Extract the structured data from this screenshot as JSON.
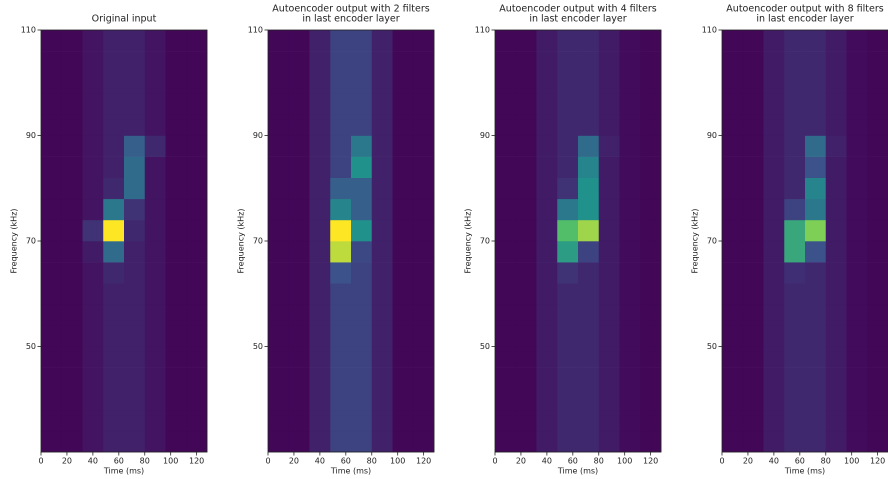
{
  "chart_data": [
    {
      "type": "heatmap",
      "title": [
        "Original input"
      ],
      "xlabel": "Time (ms)",
      "ylabel": "Frequency (kHz)",
      "colormap": "viridis",
      "xlim": [
        0,
        128
      ],
      "ylim": [
        30,
        110
      ],
      "xticks": [
        0,
        20,
        40,
        60,
        80,
        100,
        120
      ],
      "yticks": [
        50,
        70,
        90,
        110
      ],
      "x_edges": [
        0,
        16,
        32,
        48,
        64,
        80,
        96,
        112,
        128
      ],
      "y_edges": [
        30,
        34,
        38,
        42,
        46,
        50,
        54,
        58,
        62,
        66,
        70,
        74,
        78,
        82,
        86,
        90,
        94,
        98,
        102,
        106,
        110
      ],
      "z": [
        [
          0.02,
          0.02,
          0.06,
          0.1,
          0.1,
          0.06,
          0.02,
          0.02
        ],
        [
          0.02,
          0.02,
          0.06,
          0.1,
          0.1,
          0.06,
          0.02,
          0.02
        ],
        [
          0.02,
          0.02,
          0.06,
          0.1,
          0.1,
          0.06,
          0.02,
          0.02
        ],
        [
          0.02,
          0.02,
          0.06,
          0.1,
          0.1,
          0.06,
          0.02,
          0.02
        ],
        [
          0.02,
          0.02,
          0.06,
          0.1,
          0.1,
          0.06,
          0.02,
          0.02
        ],
        [
          0.02,
          0.02,
          0.06,
          0.1,
          0.1,
          0.06,
          0.02,
          0.02
        ],
        [
          0.02,
          0.02,
          0.06,
          0.1,
          0.1,
          0.06,
          0.02,
          0.02
        ],
        [
          0.02,
          0.02,
          0.06,
          0.1,
          0.1,
          0.06,
          0.02,
          0.02
        ],
        [
          0.02,
          0.02,
          0.06,
          0.12,
          0.1,
          0.06,
          0.02,
          0.02
        ],
        [
          0.02,
          0.02,
          0.08,
          0.35,
          0.1,
          0.06,
          0.02,
          0.02
        ],
        [
          0.02,
          0.02,
          0.15,
          1.0,
          0.12,
          0.06,
          0.02,
          0.02
        ],
        [
          0.02,
          0.02,
          0.06,
          0.4,
          0.15,
          0.06,
          0.02,
          0.02
        ],
        [
          0.02,
          0.02,
          0.06,
          0.12,
          0.35,
          0.06,
          0.02,
          0.02
        ],
        [
          0.02,
          0.02,
          0.06,
          0.1,
          0.35,
          0.06,
          0.02,
          0.02
        ],
        [
          0.02,
          0.02,
          0.06,
          0.1,
          0.3,
          0.12,
          0.02,
          0.02
        ],
        [
          0.02,
          0.02,
          0.06,
          0.1,
          0.1,
          0.06,
          0.02,
          0.02
        ],
        [
          0.02,
          0.02,
          0.06,
          0.1,
          0.1,
          0.06,
          0.02,
          0.02
        ],
        [
          0.02,
          0.02,
          0.06,
          0.1,
          0.1,
          0.06,
          0.02,
          0.02
        ],
        [
          0.02,
          0.02,
          0.06,
          0.1,
          0.1,
          0.06,
          0.02,
          0.02
        ],
        [
          0.02,
          0.02,
          0.06,
          0.1,
          0.1,
          0.06,
          0.02,
          0.02
        ]
      ]
    },
    {
      "type": "heatmap",
      "title": [
        "Autoencoder output with 2 filters",
        "in last encoder layer"
      ],
      "xlabel": "Time (ms)",
      "ylabel": "Frequency (kHz)",
      "colormap": "viridis",
      "xlim": [
        0,
        128
      ],
      "ylim": [
        30,
        110
      ],
      "xticks": [
        0,
        20,
        40,
        60,
        80,
        100,
        120
      ],
      "yticks": [
        50,
        70,
        90,
        110
      ],
      "x_edges": [
        0,
        16,
        32,
        48,
        64,
        80,
        96,
        112,
        128
      ],
      "y_edges": [
        30,
        34,
        38,
        42,
        46,
        50,
        54,
        58,
        62,
        66,
        70,
        74,
        78,
        82,
        86,
        90,
        94,
        98,
        102,
        106,
        110
      ],
      "z": [
        [
          0.02,
          0.02,
          0.1,
          0.2,
          0.2,
          0.1,
          0.02,
          0.02
        ],
        [
          0.02,
          0.02,
          0.1,
          0.2,
          0.2,
          0.1,
          0.02,
          0.02
        ],
        [
          0.02,
          0.02,
          0.1,
          0.2,
          0.2,
          0.1,
          0.02,
          0.02
        ],
        [
          0.02,
          0.02,
          0.1,
          0.2,
          0.2,
          0.1,
          0.02,
          0.02
        ],
        [
          0.02,
          0.02,
          0.1,
          0.2,
          0.2,
          0.1,
          0.02,
          0.02
        ],
        [
          0.02,
          0.02,
          0.1,
          0.2,
          0.2,
          0.1,
          0.02,
          0.02
        ],
        [
          0.02,
          0.02,
          0.1,
          0.2,
          0.2,
          0.1,
          0.02,
          0.02
        ],
        [
          0.02,
          0.02,
          0.1,
          0.2,
          0.2,
          0.1,
          0.02,
          0.02
        ],
        [
          0.02,
          0.02,
          0.1,
          0.25,
          0.2,
          0.1,
          0.02,
          0.02
        ],
        [
          0.02,
          0.02,
          0.1,
          0.9,
          0.22,
          0.1,
          0.02,
          0.02
        ],
        [
          0.02,
          0.02,
          0.1,
          1.0,
          0.5,
          0.1,
          0.02,
          0.02
        ],
        [
          0.02,
          0.02,
          0.1,
          0.45,
          0.3,
          0.1,
          0.02,
          0.02
        ],
        [
          0.02,
          0.02,
          0.1,
          0.3,
          0.3,
          0.1,
          0.02,
          0.02
        ],
        [
          0.02,
          0.02,
          0.1,
          0.2,
          0.5,
          0.1,
          0.02,
          0.02
        ],
        [
          0.02,
          0.02,
          0.1,
          0.2,
          0.4,
          0.1,
          0.02,
          0.02
        ],
        [
          0.02,
          0.02,
          0.1,
          0.2,
          0.2,
          0.1,
          0.02,
          0.02
        ],
        [
          0.02,
          0.02,
          0.1,
          0.2,
          0.2,
          0.1,
          0.02,
          0.02
        ],
        [
          0.02,
          0.02,
          0.1,
          0.2,
          0.2,
          0.1,
          0.02,
          0.02
        ],
        [
          0.02,
          0.02,
          0.1,
          0.2,
          0.2,
          0.1,
          0.02,
          0.02
        ],
        [
          0.02,
          0.02,
          0.1,
          0.2,
          0.2,
          0.1,
          0.02,
          0.02
        ]
      ]
    },
    {
      "type": "heatmap",
      "title": [
        "Autoencoder output with 4 filters",
        "in last encoder layer"
      ],
      "xlabel": "Time (ms)",
      "ylabel": "Frequency (kHz)",
      "colormap": "viridis",
      "xlim": [
        0,
        128
      ],
      "ylim": [
        30,
        110
      ],
      "xticks": [
        0,
        20,
        40,
        60,
        80,
        100,
        120
      ],
      "yticks": [
        50,
        70,
        90,
        110
      ],
      "x_edges": [
        0,
        16,
        32,
        48,
        64,
        80,
        96,
        112,
        128
      ],
      "y_edges": [
        30,
        34,
        38,
        42,
        46,
        50,
        54,
        58,
        62,
        66,
        70,
        74,
        78,
        82,
        86,
        90,
        94,
        98,
        102,
        106,
        110
      ],
      "z": [
        [
          0.02,
          0.02,
          0.08,
          0.12,
          0.12,
          0.08,
          0.03,
          0.02
        ],
        [
          0.02,
          0.02,
          0.08,
          0.12,
          0.12,
          0.08,
          0.03,
          0.02
        ],
        [
          0.02,
          0.02,
          0.08,
          0.12,
          0.12,
          0.08,
          0.03,
          0.02
        ],
        [
          0.02,
          0.02,
          0.08,
          0.12,
          0.12,
          0.08,
          0.03,
          0.02
        ],
        [
          0.02,
          0.02,
          0.08,
          0.12,
          0.12,
          0.08,
          0.03,
          0.02
        ],
        [
          0.02,
          0.02,
          0.08,
          0.12,
          0.12,
          0.08,
          0.03,
          0.02
        ],
        [
          0.02,
          0.02,
          0.08,
          0.12,
          0.12,
          0.08,
          0.03,
          0.02
        ],
        [
          0.02,
          0.02,
          0.08,
          0.12,
          0.12,
          0.08,
          0.03,
          0.02
        ],
        [
          0.02,
          0.02,
          0.08,
          0.15,
          0.12,
          0.08,
          0.03,
          0.02
        ],
        [
          0.02,
          0.02,
          0.08,
          0.55,
          0.2,
          0.08,
          0.03,
          0.02
        ],
        [
          0.02,
          0.02,
          0.08,
          0.7,
          0.85,
          0.08,
          0.03,
          0.02
        ],
        [
          0.02,
          0.02,
          0.08,
          0.4,
          0.5,
          0.08,
          0.03,
          0.02
        ],
        [
          0.02,
          0.02,
          0.08,
          0.15,
          0.5,
          0.08,
          0.03,
          0.02
        ],
        [
          0.02,
          0.02,
          0.08,
          0.12,
          0.45,
          0.08,
          0.03,
          0.02
        ],
        [
          0.02,
          0.02,
          0.08,
          0.12,
          0.35,
          0.1,
          0.03,
          0.02
        ],
        [
          0.02,
          0.02,
          0.08,
          0.12,
          0.12,
          0.08,
          0.03,
          0.02
        ],
        [
          0.02,
          0.02,
          0.08,
          0.12,
          0.12,
          0.08,
          0.03,
          0.02
        ],
        [
          0.02,
          0.02,
          0.08,
          0.12,
          0.12,
          0.08,
          0.03,
          0.02
        ],
        [
          0.02,
          0.02,
          0.08,
          0.12,
          0.12,
          0.08,
          0.03,
          0.02
        ],
        [
          0.02,
          0.02,
          0.08,
          0.12,
          0.12,
          0.08,
          0.03,
          0.02
        ]
      ]
    },
    {
      "type": "heatmap",
      "title": [
        "Autoencoder output with 8 filters",
        "in last encoder layer"
      ],
      "xlabel": "Time (ms)",
      "ylabel": "Frequency (kHz)",
      "colormap": "viridis",
      "xlim": [
        0,
        128
      ],
      "ylim": [
        30,
        110
      ],
      "xticks": [
        0,
        20,
        40,
        60,
        80,
        100,
        120
      ],
      "yticks": [
        50,
        70,
        90,
        110
      ],
      "x_edges": [
        0,
        16,
        32,
        48,
        64,
        80,
        96,
        112,
        128
      ],
      "y_edges": [
        30,
        34,
        38,
        42,
        46,
        50,
        54,
        58,
        62,
        66,
        70,
        74,
        78,
        82,
        86,
        90,
        94,
        98,
        102,
        106,
        110
      ],
      "z": [
        [
          0.02,
          0.02,
          0.08,
          0.12,
          0.12,
          0.08,
          0.03,
          0.02
        ],
        [
          0.02,
          0.02,
          0.08,
          0.12,
          0.12,
          0.08,
          0.03,
          0.02
        ],
        [
          0.02,
          0.02,
          0.08,
          0.12,
          0.12,
          0.08,
          0.03,
          0.02
        ],
        [
          0.02,
          0.02,
          0.08,
          0.12,
          0.12,
          0.08,
          0.03,
          0.02
        ],
        [
          0.02,
          0.02,
          0.08,
          0.12,
          0.12,
          0.08,
          0.03,
          0.02
        ],
        [
          0.02,
          0.02,
          0.08,
          0.12,
          0.12,
          0.08,
          0.03,
          0.02
        ],
        [
          0.02,
          0.02,
          0.08,
          0.12,
          0.12,
          0.08,
          0.03,
          0.02
        ],
        [
          0.02,
          0.02,
          0.08,
          0.12,
          0.12,
          0.08,
          0.03,
          0.02
        ],
        [
          0.02,
          0.02,
          0.08,
          0.14,
          0.12,
          0.08,
          0.03,
          0.02
        ],
        [
          0.02,
          0.02,
          0.08,
          0.6,
          0.25,
          0.08,
          0.03,
          0.02
        ],
        [
          0.02,
          0.02,
          0.08,
          0.6,
          0.8,
          0.08,
          0.03,
          0.02
        ],
        [
          0.02,
          0.02,
          0.08,
          0.2,
          0.4,
          0.08,
          0.03,
          0.02
        ],
        [
          0.02,
          0.02,
          0.08,
          0.12,
          0.45,
          0.08,
          0.03,
          0.02
        ],
        [
          0.02,
          0.02,
          0.08,
          0.12,
          0.25,
          0.08,
          0.03,
          0.02
        ],
        [
          0.02,
          0.02,
          0.08,
          0.12,
          0.35,
          0.1,
          0.03,
          0.02
        ],
        [
          0.02,
          0.02,
          0.08,
          0.12,
          0.12,
          0.08,
          0.03,
          0.02
        ],
        [
          0.02,
          0.02,
          0.08,
          0.12,
          0.12,
          0.08,
          0.03,
          0.02
        ],
        [
          0.02,
          0.02,
          0.08,
          0.12,
          0.12,
          0.08,
          0.03,
          0.02
        ],
        [
          0.02,
          0.02,
          0.08,
          0.12,
          0.12,
          0.08,
          0.03,
          0.02
        ],
        [
          0.02,
          0.02,
          0.08,
          0.12,
          0.12,
          0.08,
          0.03,
          0.02
        ]
      ]
    }
  ]
}
